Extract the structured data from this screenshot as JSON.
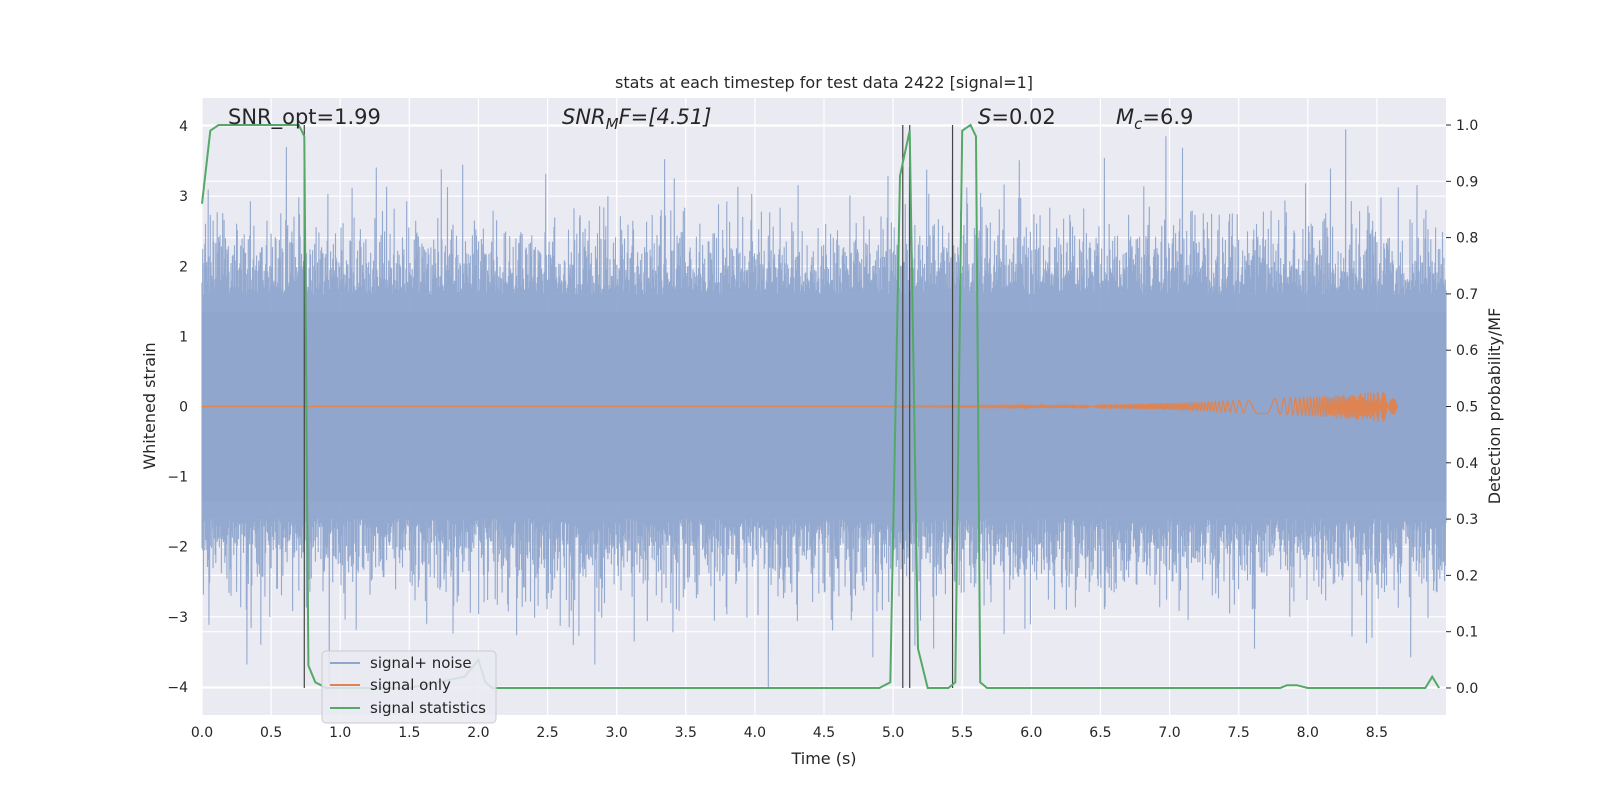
{
  "chart_data": {
    "type": "line",
    "title": "stats at each timestep for test data 2422 [signal=1]",
    "xlabel": "Time (s)",
    "ylabel": "Whitened strain",
    "y2label": "Detection probability/MF",
    "xlim": [
      0,
      9.0
    ],
    "ylim": [
      -4.4,
      4.4
    ],
    "y2lim": [
      -0.048,
      1.048
    ],
    "xticks": [
      0.0,
      0.5,
      1.0,
      1.5,
      2.0,
      2.5,
      3.0,
      3.5,
      4.0,
      4.5,
      5.0,
      5.5,
      6.0,
      6.5,
      7.0,
      7.5,
      8.0,
      8.5
    ],
    "xtick_labels": [
      "0.0",
      "0.5",
      "1.0",
      "1.5",
      "2.0",
      "2.5",
      "3.0",
      "3.5",
      "4.0",
      "4.5",
      "5.0",
      "5.5",
      "6.0",
      "6.5",
      "7.0",
      "7.5",
      "8.0",
      "8.5"
    ],
    "yticks": [
      -4,
      -3,
      -2,
      -1,
      0,
      1,
      2,
      3,
      4
    ],
    "ytick_labels": [
      "−4",
      "−3",
      "−2",
      "−1",
      "0",
      "1",
      "2",
      "3",
      "4"
    ],
    "y2ticks": [
      0.0,
      0.1,
      0.2,
      0.3,
      0.4,
      0.5,
      0.6,
      0.7,
      0.8,
      0.9,
      1.0
    ],
    "y2tick_labels": [
      "0.0",
      "0.1",
      "0.2",
      "0.3",
      "0.4",
      "0.5",
      "0.6",
      "0.7",
      "0.8",
      "0.9",
      "1.0"
    ],
    "grid": true,
    "legend_position": "lower-left",
    "annotations": {
      "snr_opt": "SNR_opt=1.99",
      "snr_mf_main": "SNR",
      "snr_mf_sub": "M",
      "snr_mf_rest": "F=[4.51]",
      "s_main": "S",
      "s_rest": "=0.02",
      "mc_main": "M",
      "mc_sub": "c",
      "mc_rest": "=6.9"
    },
    "vertical_lines_x": [
      0.74,
      5.07,
      5.12,
      5.43
    ],
    "series": [
      {
        "name": "signal+ noise",
        "color": "#8fa5cc",
        "axis": "left",
        "duration": 9.0,
        "sample_rate": 2048,
        "envelope": 1.6
      },
      {
        "name": "signal only",
        "color": "#dd8452",
        "axis": "left",
        "chirp_start": 5.0,
        "chirp_end": 8.65,
        "peak_amplitude": 0.22
      },
      {
        "name": "signal statistics",
        "color": "#55a868",
        "axis": "right",
        "x": [
          0.0,
          0.06,
          0.12,
          0.2,
          0.3,
          0.4,
          0.5,
          0.6,
          0.65,
          0.7,
          0.74,
          0.77,
          0.82,
          0.9,
          1.0,
          1.5,
          1.9,
          2.0,
          2.05,
          2.1,
          3.0,
          4.0,
          4.9,
          4.98,
          5.05,
          5.12,
          5.18,
          5.25,
          5.4,
          5.45,
          5.5,
          5.56,
          5.6,
          5.63,
          5.68,
          5.75,
          6.0,
          7.0,
          7.8,
          7.85,
          7.92,
          8.0,
          8.5,
          8.85,
          8.9,
          8.95
        ],
        "y": [
          0.86,
          0.99,
          1.0,
          1.0,
          1.0,
          1.0,
          1.0,
          1.0,
          1.0,
          1.0,
          0.98,
          0.04,
          0.01,
          0.0,
          0.0,
          0.0,
          0.02,
          0.05,
          0.01,
          0.0,
          0.0,
          0.0,
          0.0,
          0.01,
          0.91,
          0.99,
          0.07,
          0.0,
          0.0,
          0.01,
          0.99,
          1.0,
          0.98,
          0.01,
          0.0,
          0.0,
          0.0,
          0.0,
          0.0,
          0.005,
          0.005,
          0.0,
          0.0,
          0.0,
          0.02,
          0.0
        ]
      }
    ]
  }
}
